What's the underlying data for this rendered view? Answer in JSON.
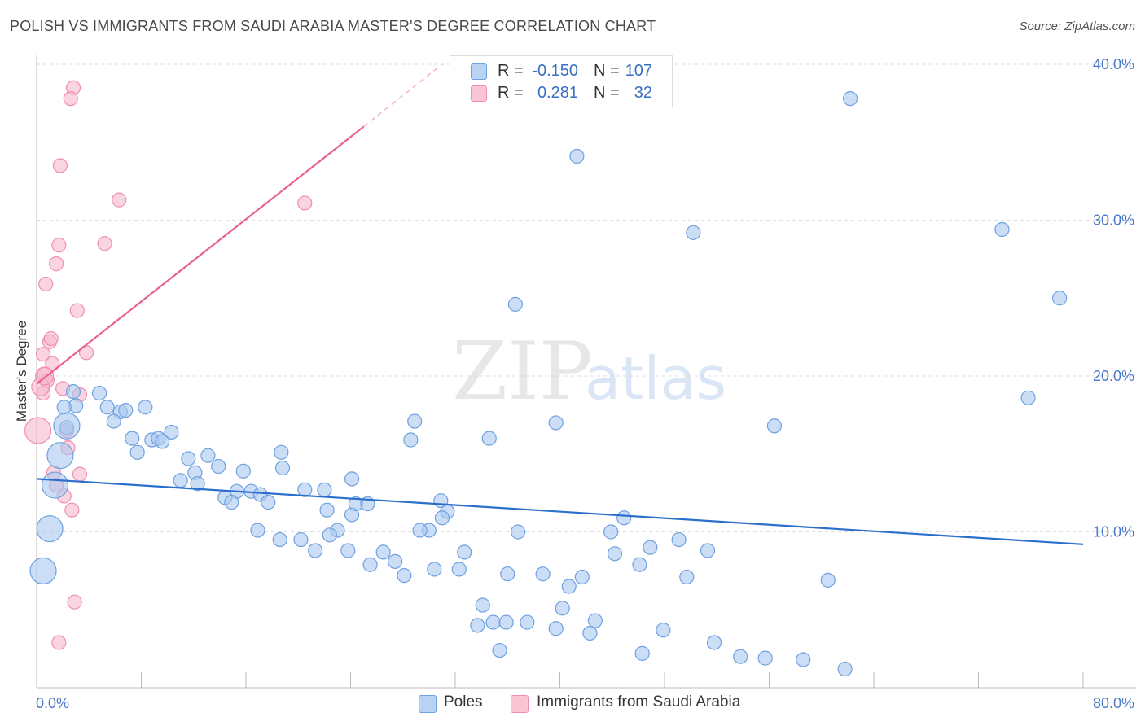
{
  "title": "POLISH VS IMMIGRANTS FROM SAUDI ARABIA MASTER'S DEGREE CORRELATION CHART",
  "source": "Source: ZipAtlas.com",
  "watermark": {
    "zip": "ZIP",
    "atlas": "atlas"
  },
  "legend": {
    "rows": [
      {
        "r_label": "R =",
        "r_value": "-0.150",
        "n_label": "N =",
        "n_value": "107",
        "color": "#a8c8f0"
      },
      {
        "r_label": "R =",
        "r_value": "0.281",
        "n_label": "N =",
        "n_value": "32",
        "color": "#f7b8cb"
      }
    ]
  },
  "bottom_legend": [
    {
      "label": "Poles",
      "color": "#a8c8f0"
    },
    {
      "label": "Immigrants from Saudi Arabia",
      "color": "#f7b8cb"
    }
  ],
  "chart_data": {
    "type": "scatter",
    "title": "POLISH VS IMMIGRANTS FROM SAUDI ARABIA MASTER'S DEGREE CORRELATION CHART",
    "xlabel": "",
    "ylabel": "Master's Degree",
    "xlim": [
      0,
      80
    ],
    "ylim": [
      0,
      40
    ],
    "x_tick_labels": [
      "0.0%",
      "80.0%"
    ],
    "y_tick_labels": [
      {
        "value": 10,
        "label": "10.0%"
      },
      {
        "value": 20,
        "label": "20.0%"
      },
      {
        "value": 30,
        "label": "30.0%"
      },
      {
        "value": 40,
        "label": "40.0%"
      }
    ],
    "grid": true,
    "series": [
      {
        "name": "Poles",
        "color": "#6fa0e0",
        "fill": "#a8c8f0",
        "trend": {
          "x0": 0,
          "y0": 13.4,
          "x1": 80,
          "y1": 9.2,
          "color": "#2b6fcc"
        },
        "points": [
          [
            62.2,
            37.8
          ],
          [
            41.3,
            34.1
          ],
          [
            50.2,
            29.2
          ],
          [
            73.8,
            29.4
          ],
          [
            78.2,
            25.0
          ],
          [
            36.6,
            24.6
          ],
          [
            2.8,
            19.0
          ],
          [
            3.0,
            18.1
          ],
          [
            4.8,
            18.9
          ],
          [
            5.4,
            18.0
          ],
          [
            6.4,
            17.7
          ],
          [
            6.8,
            17.8
          ],
          [
            8.3,
            18.0
          ],
          [
            5.9,
            17.1
          ],
          [
            2.1,
            18.0
          ],
          [
            2.3,
            16.7
          ],
          [
            7.3,
            16.0
          ],
          [
            8.8,
            15.9
          ],
          [
            9.3,
            16.0
          ],
          [
            10.3,
            16.4
          ],
          [
            9.6,
            15.8
          ],
          [
            7.7,
            15.1
          ],
          [
            11.6,
            14.7
          ],
          [
            13.1,
            14.9
          ],
          [
            12.1,
            13.8
          ],
          [
            13.9,
            14.2
          ],
          [
            11.0,
            13.3
          ],
          [
            12.3,
            13.1
          ],
          [
            15.8,
            13.9
          ],
          [
            18.7,
            15.1
          ],
          [
            18.8,
            14.1
          ],
          [
            15.3,
            12.6
          ],
          [
            16.4,
            12.6
          ],
          [
            14.4,
            12.2
          ],
          [
            14.9,
            11.9
          ],
          [
            17.1,
            12.4
          ],
          [
            17.7,
            11.9
          ],
          [
            20.5,
            12.7
          ],
          [
            22.0,
            12.7
          ],
          [
            22.2,
            11.4
          ],
          [
            24.1,
            11.1
          ],
          [
            24.4,
            11.8
          ],
          [
            25.3,
            11.8
          ],
          [
            24.1,
            13.4
          ],
          [
            28.6,
            15.9
          ],
          [
            28.9,
            17.1
          ],
          [
            30.9,
            12.0
          ],
          [
            31.4,
            11.3
          ],
          [
            31.0,
            10.9
          ],
          [
            30.0,
            10.1
          ],
          [
            29.3,
            10.1
          ],
          [
            23.0,
            10.1
          ],
          [
            22.4,
            9.8
          ],
          [
            16.9,
            10.1
          ],
          [
            18.6,
            9.5
          ],
          [
            20.2,
            9.5
          ],
          [
            21.3,
            8.8
          ],
          [
            23.8,
            8.8
          ],
          [
            25.5,
            7.9
          ],
          [
            26.5,
            8.7
          ],
          [
            27.4,
            8.1
          ],
          [
            28.1,
            7.2
          ],
          [
            30.4,
            7.6
          ],
          [
            32.3,
            7.6
          ],
          [
            32.7,
            8.7
          ],
          [
            34.6,
            16.0
          ],
          [
            36.8,
            10.0
          ],
          [
            39.7,
            17.0
          ],
          [
            36.0,
            7.3
          ],
          [
            38.7,
            7.3
          ],
          [
            40.7,
            6.5
          ],
          [
            41.7,
            7.1
          ],
          [
            43.9,
            10.0
          ],
          [
            44.2,
            8.6
          ],
          [
            44.9,
            10.9
          ],
          [
            46.1,
            7.9
          ],
          [
            46.9,
            9.0
          ],
          [
            49.1,
            9.5
          ],
          [
            49.7,
            7.1
          ],
          [
            51.3,
            8.8
          ],
          [
            56.4,
            16.8
          ],
          [
            60.5,
            6.9
          ],
          [
            34.1,
            5.3
          ],
          [
            33.7,
            4.0
          ],
          [
            34.9,
            4.2
          ],
          [
            35.9,
            4.2
          ],
          [
            37.5,
            4.2
          ],
          [
            40.2,
            5.1
          ],
          [
            39.7,
            3.8
          ],
          [
            42.7,
            4.3
          ],
          [
            42.3,
            3.5
          ],
          [
            35.4,
            2.4
          ],
          [
            46.3,
            2.2
          ],
          [
            47.9,
            3.7
          ],
          [
            51.8,
            2.9
          ],
          [
            53.8,
            2.0
          ],
          [
            55.7,
            1.9
          ],
          [
            58.6,
            1.8
          ],
          [
            61.8,
            1.2
          ],
          [
            75.8,
            18.6
          ],
          [
            2.3,
            16.8,
            "big"
          ],
          [
            1.8,
            14.9,
            "big"
          ],
          [
            1.4,
            13.0,
            "big"
          ],
          [
            1.0,
            10.2,
            "big"
          ],
          [
            0.5,
            7.5,
            "big"
          ]
        ]
      },
      {
        "name": "Immigrants from Saudi Arabia",
        "color": "#f08fb0",
        "fill": "#f7b8cb",
        "trend": {
          "x0": 0,
          "y0": 19.5,
          "x1": 25,
          "y1": 36.0,
          "dash_x1": 31,
          "dash_y1": 40.0,
          "color": "#e8628c"
        },
        "points": [
          [
            2.8,
            38.5
          ],
          [
            2.6,
            37.8
          ],
          [
            1.8,
            33.5
          ],
          [
            6.3,
            31.3
          ],
          [
            20.5,
            31.1
          ],
          [
            1.7,
            28.4
          ],
          [
            5.2,
            28.5
          ],
          [
            1.5,
            27.2
          ],
          [
            0.7,
            25.9
          ],
          [
            3.1,
            24.2
          ],
          [
            1.0,
            22.2
          ],
          [
            1.1,
            22.4
          ],
          [
            3.8,
            21.5
          ],
          [
            0.5,
            21.4
          ],
          [
            1.2,
            20.8
          ],
          [
            0.6,
            20.1
          ],
          [
            0.8,
            19.7
          ],
          [
            2.0,
            19.2
          ],
          [
            0.5,
            18.9
          ],
          [
            3.3,
            18.8
          ],
          [
            2.3,
            16.5
          ],
          [
            2.4,
            15.4
          ],
          [
            1.3,
            13.8
          ],
          [
            3.3,
            13.7
          ],
          [
            1.5,
            13.0
          ],
          [
            2.1,
            12.3
          ],
          [
            2.7,
            11.4
          ],
          [
            2.9,
            5.5
          ],
          [
            1.7,
            2.9
          ],
          [
            0.1,
            16.5,
            "big"
          ],
          [
            0.3,
            19.3,
            "med"
          ],
          [
            0.6,
            20.0,
            "med"
          ]
        ]
      }
    ]
  }
}
